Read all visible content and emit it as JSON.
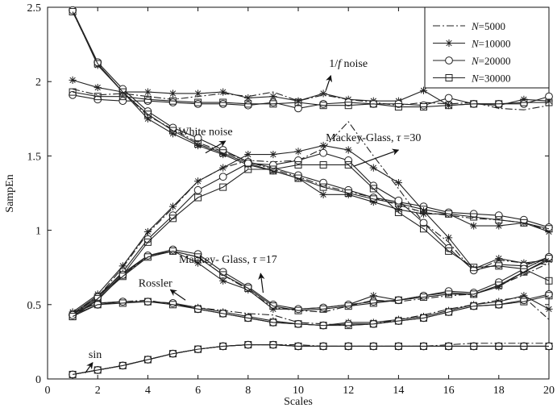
{
  "chart_data": {
    "type": "line",
    "title": "",
    "xlabel": "Scales",
    "ylabel": "SampEn",
    "xlim": [
      0,
      20
    ],
    "ylim": [
      0,
      2.5
    ],
    "x_ticks": [
      "0",
      "2",
      "4",
      "6",
      "8",
      "10",
      "12",
      "14",
      "16",
      "18",
      "20"
    ],
    "y_ticks": [
      "0",
      "0.5",
      "1",
      "1.5",
      "2",
      "2.5"
    ],
    "legend_position": "top-right",
    "legend": [
      {
        "prefix": "N",
        "label": "=5000",
        "style": "dashdot",
        "marker": "none"
      },
      {
        "prefix": "N",
        "label": "=10000",
        "style": "solid",
        "marker": "star"
      },
      {
        "prefix": "N",
        "label": "=20000",
        "style": "solid",
        "marker": "circle"
      },
      {
        "prefix": "N",
        "label": "=30000",
        "style": "solid",
        "marker": "square"
      }
    ],
    "x": [
      1,
      2,
      3,
      4,
      5,
      6,
      7,
      8,
      9,
      10,
      11,
      12,
      13,
      14,
      15,
      16,
      17,
      18,
      19,
      20
    ],
    "groups": [
      {
        "name": "1/f noise",
        "series": [
          {
            "N": "5000",
            "values": [
              1.95,
              1.91,
              1.92,
              1.9,
              1.88,
              1.9,
              1.92,
              1.9,
              1.93,
              1.87,
              1.91,
              1.88,
              1.86,
              1.84,
              1.86,
              1.85,
              1.86,
              1.82,
              1.81,
              1.84
            ]
          },
          {
            "N": "10000",
            "values": [
              2.01,
              1.96,
              1.93,
              1.93,
              1.92,
              1.92,
              1.93,
              1.89,
              1.9,
              1.87,
              1.92,
              1.88,
              1.87,
              1.87,
              1.94,
              1.84,
              1.85,
              1.84,
              1.88,
              1.87
            ]
          },
          {
            "N": "20000",
            "values": [
              1.91,
              1.88,
              1.87,
              1.87,
              1.86,
              1.85,
              1.85,
              1.84,
              1.86,
              1.82,
              1.85,
              1.86,
              1.85,
              1.85,
              1.84,
              1.89,
              1.85,
              1.85,
              1.85,
              1.9
            ]
          },
          {
            "N": "30000",
            "values": [
              1.93,
              1.9,
              1.9,
              1.88,
              1.87,
              1.86,
              1.86,
              1.85,
              1.85,
              1.86,
              1.84,
              1.84,
              1.85,
              1.83,
              1.83,
              1.84,
              1.85,
              1.85,
              1.86,
              1.86
            ]
          }
        ]
      },
      {
        "name": "White noise",
        "series": [
          {
            "N": "5000",
            "values": [
              2.47,
              2.12,
              1.93,
              1.77,
              1.68,
              1.59,
              1.53,
              1.46,
              1.41,
              1.36,
              1.3,
              1.26,
              1.22,
              1.17,
              1.12,
              1.1,
              1.08,
              1.07,
              1.05,
              1.0
            ]
          },
          {
            "N": "10000",
            "values": [
              2.48,
              2.11,
              1.93,
              1.75,
              1.65,
              1.57,
              1.51,
              1.44,
              1.4,
              1.35,
              1.24,
              1.24,
              1.19,
              1.14,
              1.11,
              1.11,
              1.03,
              1.03,
              1.05,
              0.99
            ]
          },
          {
            "N": "20000",
            "values": [
              2.48,
              2.13,
              1.95,
              1.8,
              1.69,
              1.62,
              1.54,
              1.46,
              1.42,
              1.37,
              1.32,
              1.27,
              1.22,
              1.19,
              1.16,
              1.12,
              1.11,
              1.1,
              1.07,
              1.02
            ]
          },
          {
            "N": "30000",
            "values": [
              2.47,
              2.12,
              1.93,
              1.78,
              1.67,
              1.58,
              1.52,
              1.45,
              1.4,
              1.35,
              1.29,
              1.25,
              1.21,
              1.18,
              1.14,
              1.11,
              1.09,
              1.07,
              1.05,
              1.01
            ]
          }
        ]
      },
      {
        "name": "Mackey-Glass, τ=30",
        "series": [
          {
            "N": "5000",
            "values": [
              0.44,
              0.55,
              0.75,
              0.98,
              1.15,
              1.33,
              1.42,
              1.47,
              1.46,
              1.47,
              1.55,
              1.73,
              1.5,
              1.28,
              1.05,
              0.92,
              0.72,
              0.8,
              0.78,
              0.77
            ]
          },
          {
            "N": "10000",
            "values": [
              0.45,
              0.57,
              0.76,
              0.99,
              1.16,
              1.33,
              1.42,
              1.51,
              1.51,
              1.53,
              1.57,
              1.54,
              1.42,
              1.32,
              1.13,
              0.95,
              0.74,
              0.81,
              0.78,
              0.8
            ]
          },
          {
            "N": "20000",
            "values": [
              0.43,
              0.55,
              0.72,
              0.94,
              1.1,
              1.27,
              1.36,
              1.45,
              1.44,
              1.47,
              1.52,
              1.47,
              1.3,
              1.2,
              1.05,
              0.88,
              0.73,
              0.77,
              0.76,
              0.82
            ]
          },
          {
            "N": "30000",
            "values": [
              0.42,
              0.53,
              0.7,
              0.92,
              1.08,
              1.22,
              1.29,
              1.41,
              1.41,
              1.44,
              1.44,
              1.44,
              1.28,
              1.12,
              1.01,
              0.86,
              0.75,
              0.76,
              0.74,
              0.66
            ]
          }
        ]
      },
      {
        "name": "Mackey-Glass, τ=17",
        "series": [
          {
            "N": "5000",
            "values": [
              0.43,
              0.55,
              0.7,
              0.82,
              0.86,
              0.82,
              0.7,
              0.6,
              0.48,
              0.46,
              0.45,
              0.49,
              0.53,
              0.52,
              0.54,
              0.56,
              0.57,
              0.63,
              0.7,
              0.78
            ]
          },
          {
            "N": "10000",
            "values": [
              0.44,
              0.56,
              0.71,
              0.83,
              0.86,
              0.78,
              0.66,
              0.6,
              0.47,
              0.47,
              0.48,
              0.5,
              0.56,
              0.53,
              0.56,
              0.58,
              0.57,
              0.62,
              0.72,
              0.8
            ]
          },
          {
            "N": "20000",
            "values": [
              0.43,
              0.55,
              0.7,
              0.83,
              0.87,
              0.84,
              0.72,
              0.62,
              0.5,
              0.47,
              0.48,
              0.5,
              0.52,
              0.53,
              0.56,
              0.59,
              0.58,
              0.65,
              0.74,
              0.82
            ]
          },
          {
            "N": "30000",
            "values": [
              0.42,
              0.54,
              0.69,
              0.82,
              0.86,
              0.82,
              0.7,
              0.61,
              0.49,
              0.46,
              0.47,
              0.49,
              0.51,
              0.53,
              0.55,
              0.57,
              0.57,
              0.63,
              0.72,
              0.81
            ]
          }
        ]
      },
      {
        "name": "Rossler",
        "series": [
          {
            "N": "5000",
            "values": [
              0.45,
              0.51,
              0.52,
              0.53,
              0.5,
              0.48,
              0.46,
              0.44,
              0.43,
              0.38,
              0.37,
              0.36,
              0.37,
              0.4,
              0.43,
              0.47,
              0.5,
              0.53,
              0.55,
              0.4
            ]
          },
          {
            "N": "10000",
            "values": [
              0.44,
              0.51,
              0.52,
              0.52,
              0.51,
              0.48,
              0.45,
              0.42,
              0.39,
              0.37,
              0.36,
              0.38,
              0.38,
              0.4,
              0.42,
              0.46,
              0.5,
              0.52,
              0.56,
              0.47
            ]
          },
          {
            "N": "20000",
            "values": [
              0.43,
              0.5,
              0.52,
              0.52,
              0.51,
              0.47,
              0.44,
              0.41,
              0.38,
              0.37,
              0.36,
              0.37,
              0.37,
              0.39,
              0.41,
              0.45,
              0.49,
              0.5,
              0.53,
              0.57
            ]
          },
          {
            "N": "30000",
            "values": [
              0.42,
              0.5,
              0.51,
              0.52,
              0.5,
              0.47,
              0.44,
              0.41,
              0.38,
              0.37,
              0.36,
              0.36,
              0.37,
              0.39,
              0.41,
              0.45,
              0.49,
              0.5,
              0.52,
              0.56
            ]
          }
        ]
      },
      {
        "name": "sin",
        "series": [
          {
            "N": "5000",
            "values": [
              0.03,
              0.06,
              0.09,
              0.13,
              0.17,
              0.2,
              0.22,
              0.23,
              0.23,
              0.23,
              0.22,
              0.22,
              0.22,
              0.22,
              0.22,
              0.23,
              0.24,
              0.24,
              0.24,
              0.24
            ]
          },
          {
            "N": "10000",
            "values": [
              0.03,
              0.06,
              0.09,
              0.13,
              0.17,
              0.2,
              0.22,
              0.23,
              0.23,
              0.22,
              0.22,
              0.22,
              0.22,
              0.22,
              0.22,
              0.22,
              0.22,
              0.22,
              0.22,
              0.22
            ]
          },
          {
            "N": "20000",
            "values": [
              0.03,
              0.06,
              0.09,
              0.13,
              0.17,
              0.2,
              0.22,
              0.23,
              0.23,
              0.22,
              0.22,
              0.22,
              0.22,
              0.22,
              0.22,
              0.22,
              0.22,
              0.22,
              0.22,
              0.22
            ]
          },
          {
            "N": "30000",
            "values": [
              0.03,
              0.06,
              0.09,
              0.13,
              0.17,
              0.2,
              0.22,
              0.23,
              0.23,
              0.22,
              0.22,
              0.22,
              0.22,
              0.22,
              0.22,
              0.22,
              0.22,
              0.22,
              0.22,
              0.22
            ]
          }
        ]
      }
    ],
    "annotations": [
      {
        "id": "one-over-f",
        "parts": [
          "1/",
          "f",
          " noise"
        ],
        "italic_part": 1,
        "text_x": 12.0,
        "text_y": 2.1,
        "arrow_from": [
          11.1,
          1.94
        ],
        "arrow_to": [
          11.3,
          2.04
        ]
      },
      {
        "id": "white",
        "parts": [
          "White noise"
        ],
        "text_x": 6.3,
        "text_y": 1.64,
        "arrow_from": [
          6.3,
          1.52
        ],
        "arrow_to": [
          7.1,
          1.6
        ]
      },
      {
        "id": "mg30",
        "parts": [
          "Mackey-Glass, ",
          "τ",
          " =30"
        ],
        "italic_part": 1,
        "text_x": 13.0,
        "text_y": 1.6,
        "arrow_from": [
          12.2,
          1.43
        ],
        "arrow_to": [
          14.0,
          1.54
        ]
      },
      {
        "id": "mg17",
        "parts": [
          "Mackey- Glass, ",
          "τ",
          " =17"
        ],
        "italic_part": 1,
        "text_x": 7.2,
        "text_y": 0.78,
        "arrow_from": [
          8.6,
          0.58
        ],
        "arrow_to": [
          8.5,
          0.71
        ]
      },
      {
        "id": "rossler",
        "parts": [
          "Rossler"
        ],
        "text_x": 4.3,
        "text_y": 0.62,
        "arrow_from": [
          5.5,
          0.53
        ],
        "arrow_to": [
          4.9,
          0.6
        ]
      },
      {
        "id": "sin",
        "parts": [
          "sin"
        ],
        "text_x": 1.9,
        "text_y": 0.14,
        "arrow_from": [
          1.5,
          0.04
        ],
        "arrow_to": [
          1.8,
          0.11
        ]
      }
    ]
  }
}
